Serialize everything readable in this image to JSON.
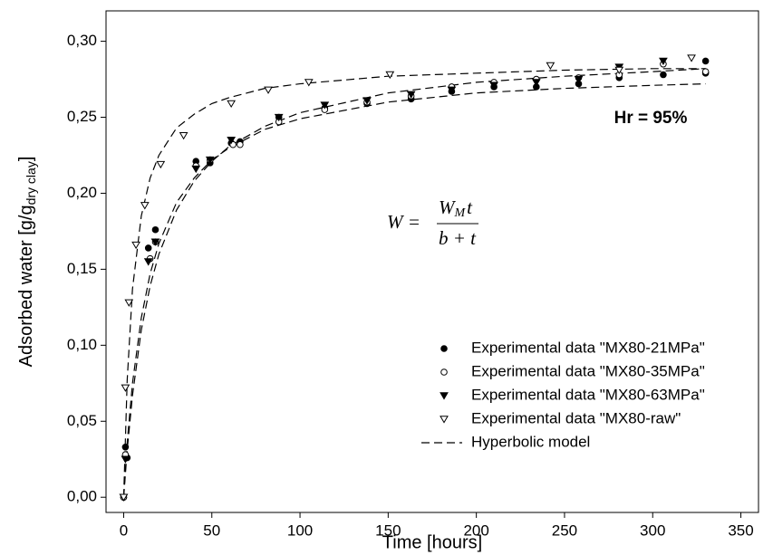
{
  "chart_data": {
    "type": "scatter",
    "xlabel": "Time [hours]",
    "ylabel": [
      "Adsorbed water [g/g",
      "dry clay",
      "]"
    ],
    "annotation": "Hr = 95%",
    "equation": {
      "lhs": "W =",
      "numerator": [
        "W",
        "M",
        "t"
      ],
      "denominator": "b + t"
    },
    "xlim": [
      -10,
      360
    ],
    "ylim": [
      -0.01,
      0.32
    ],
    "xticks": [
      0,
      50,
      100,
      150,
      200,
      250,
      300,
      350
    ],
    "yticks": [
      {
        "value": 0,
        "label": "0,00"
      },
      {
        "value": 0.05,
        "label": "0,05"
      },
      {
        "value": 0.1,
        "label": "0,10"
      },
      {
        "value": 0.15,
        "label": "0,15"
      },
      {
        "value": 0.2,
        "label": "0,20"
      },
      {
        "value": 0.25,
        "label": "0,25"
      },
      {
        "value": 0.3,
        "label": "0,30"
      }
    ],
    "series": [
      {
        "name": "Experimental data \"MX80-21MPa\"",
        "marker": "circle",
        "filled": true,
        "color": "#000000",
        "x": [
          0,
          1,
          2,
          14,
          18,
          41,
          49,
          61,
          66,
          88,
          114,
          138,
          163,
          186,
          210,
          234,
          258,
          281,
          306,
          330,
          330
        ],
        "values": [
          0,
          0.033,
          0.026,
          0.164,
          0.176,
          0.221,
          0.22,
          0.233,
          0.234,
          0.25,
          0.256,
          0.259,
          0.262,
          0.267,
          0.27,
          0.27,
          0.272,
          0.276,
          0.278,
          0.279,
          0.287
        ]
      },
      {
        "name": "Experimental data \"MX80-35MPa\"",
        "marker": "circle",
        "filled": false,
        "color": "#000000",
        "x": [
          0,
          1,
          15,
          18,
          41,
          49,
          62,
          66,
          88,
          114,
          138,
          163,
          186,
          210,
          234,
          258,
          281,
          306,
          330
        ],
        "values": [
          0,
          0.028,
          0.157,
          0.168,
          0.218,
          0.222,
          0.232,
          0.232,
          0.247,
          0.255,
          0.26,
          0.264,
          0.27,
          0.273,
          0.275,
          0.276,
          0.278,
          0.285,
          0.28
        ]
      },
      {
        "name": "Experimental data \"MX80-63MPa\"",
        "marker": "triangle-down",
        "filled": true,
        "color": "#000000",
        "x": [
          0,
          1,
          14,
          18,
          41,
          49,
          61,
          88,
          114,
          138,
          163,
          186,
          210,
          234,
          258,
          281,
          306
        ],
        "values": [
          0,
          0.025,
          0.155,
          0.168,
          0.216,
          0.222,
          0.235,
          0.25,
          0.258,
          0.261,
          0.265,
          0.268,
          0.271,
          0.273,
          0.275,
          0.283,
          0.287
        ]
      },
      {
        "name": "Experimental data \"MX80-raw\"",
        "marker": "triangle-down",
        "filled": false,
        "color": "#000000",
        "x": [
          0,
          1,
          3,
          7,
          12,
          21,
          34,
          61,
          82,
          105,
          151,
          242,
          281,
          322
        ],
        "values": [
          0,
          0.072,
          0.128,
          0.166,
          0.192,
          0.219,
          0.238,
          0.259,
          0.268,
          0.273,
          0.278,
          0.284,
          0.281,
          0.289
        ]
      }
    ],
    "model": {
      "name": "Hyperbolic model",
      "color": "#000000",
      "x": [
        0,
        2,
        5,
        10,
        15,
        20,
        30,
        40,
        50,
        60,
        80,
        100,
        150,
        200,
        250,
        300,
        330
      ],
      "curves": [
        [
          0,
          0.077,
          0.137,
          0.185,
          0.21,
          0.225,
          0.243,
          0.252,
          0.259,
          0.263,
          0.269,
          0.272,
          0.277,
          0.279,
          0.281,
          0.282,
          0.282
        ],
        [
          0,
          0.031,
          0.067,
          0.11,
          0.139,
          0.16,
          0.189,
          0.208,
          0.221,
          0.231,
          0.244,
          0.253,
          0.266,
          0.273,
          0.277,
          0.28,
          0.282
        ],
        [
          0,
          0.036,
          0.075,
          0.118,
          0.147,
          0.167,
          0.194,
          0.21,
          0.222,
          0.23,
          0.242,
          0.249,
          0.26,
          0.266,
          0.269,
          0.271,
          0.272
        ]
      ]
    }
  }
}
